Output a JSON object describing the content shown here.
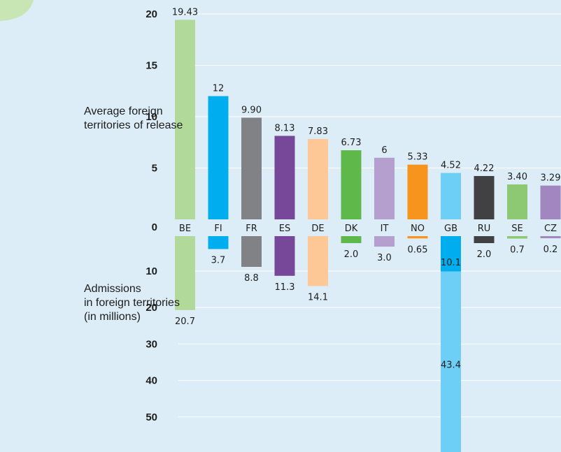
{
  "labels": {
    "top_line1": "Average foreign",
    "top_line2": "territories of release",
    "bottom_line1": "Admissions",
    "bottom_line2": "in foreign territories",
    "bottom_line3": "(in millions)"
  },
  "chart_data": {
    "type": "bar",
    "categories": [
      "BE",
      "FI",
      "FR",
      "ES",
      "DE",
      "DK",
      "IT",
      "NO",
      "GB",
      "RU",
      "SE",
      "CZ"
    ],
    "top": {
      "values": [
        19.43,
        12,
        9.9,
        8.13,
        7.83,
        6.73,
        6,
        5.33,
        4.52,
        4.22,
        3.4,
        3.29
      ],
      "value_labels": [
        "19.43",
        "12",
        "9.90",
        "8.13",
        "7.83",
        "6.73",
        "6",
        "5.33",
        "4.52",
        "4.22",
        "3.40",
        "3.29"
      ],
      "ylim": [
        0,
        20
      ],
      "ticks": [
        "20",
        "15",
        "10",
        "5",
        "0"
      ]
    },
    "bottom": {
      "values": [
        20.7,
        3.7,
        8.8,
        11.3,
        14.1,
        2.0,
        3.0,
        0.65,
        53.5,
        2.0,
        0.7,
        0.2
      ],
      "value_labels": [
        "20.7",
        "3.7",
        "8.8",
        "11.3",
        "14.1",
        "2.0",
        "3.0",
        "0.65",
        "",
        "2.0",
        "0.7",
        "0.2"
      ],
      "gb_segments": [
        {
          "value": 10.1,
          "label": "10.1",
          "color": "#00aeef"
        },
        {
          "value": 43.4,
          "label": "43.4",
          "color": "#6dcff6"
        }
      ],
      "ticks": [
        "10",
        "20",
        "30",
        "40",
        "50"
      ]
    },
    "colors": [
      "#b1d99a",
      "#00aeef",
      "#808285",
      "#774899",
      "#fdc896",
      "#5fb94a",
      "#b59fcf",
      "#f7941d",
      "#6dcff6",
      "#414042",
      "#8dc972",
      "#a286bf"
    ]
  }
}
